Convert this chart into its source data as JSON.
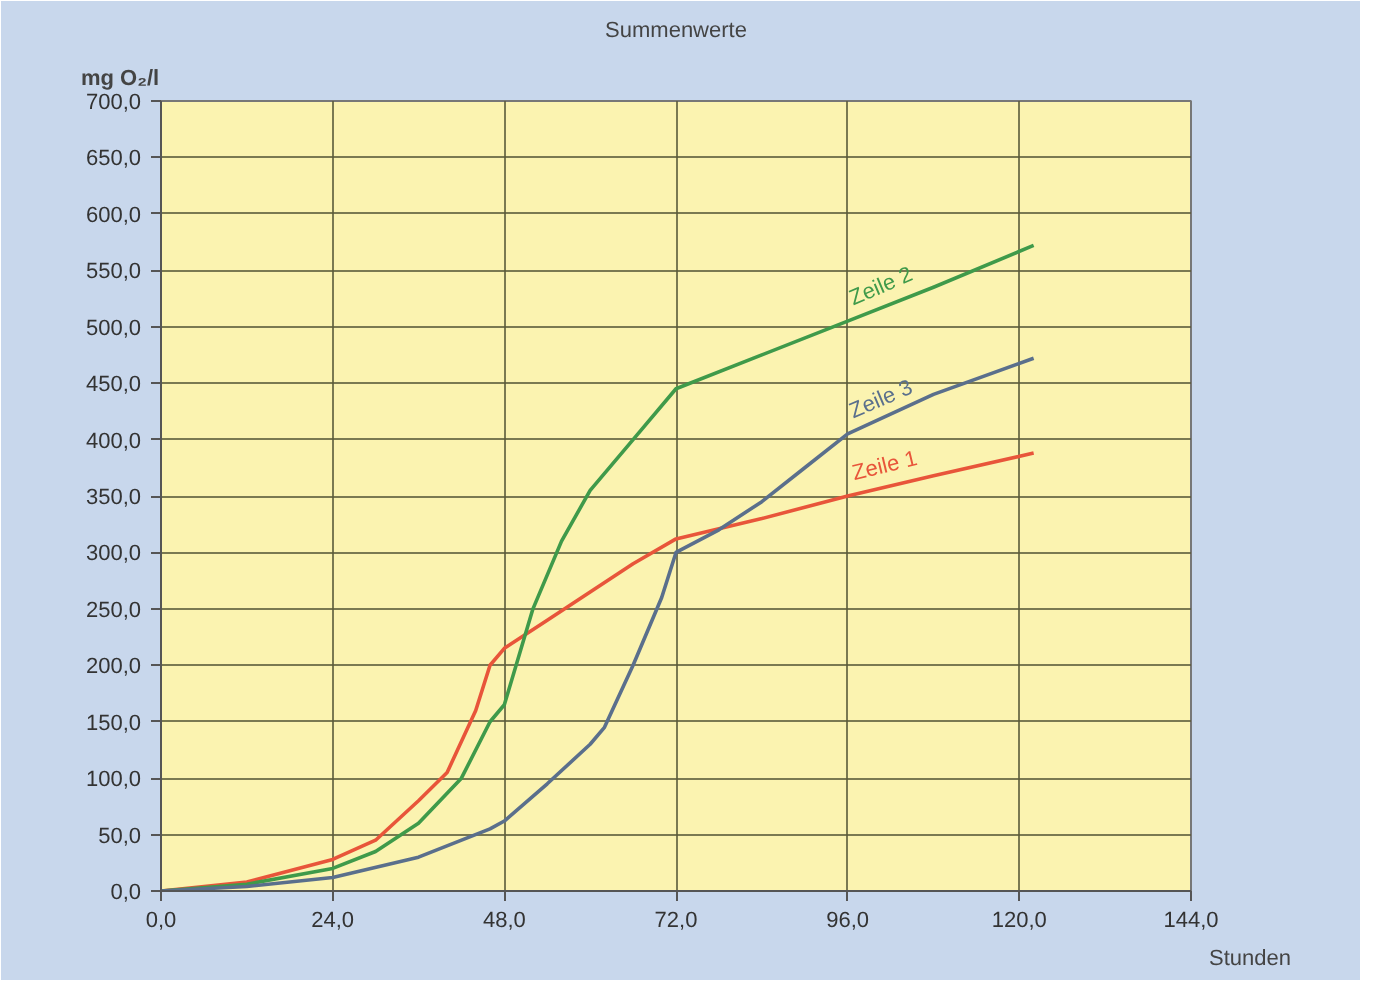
{
  "chart_data": {
    "type": "line",
    "title": "Summenwerte",
    "xlabel": "Stunden",
    "ylabel": "mg O₂/l",
    "xlim": [
      0,
      144
    ],
    "ylim": [
      0,
      700
    ],
    "xticks": [
      {
        "value": 0,
        "label": "0,0"
      },
      {
        "value": 24,
        "label": "24,0"
      },
      {
        "value": 48,
        "label": "48,0"
      },
      {
        "value": 72,
        "label": "72,0"
      },
      {
        "value": 96,
        "label": "96,0"
      },
      {
        "value": 120,
        "label": "120,0"
      },
      {
        "value": 144,
        "label": "144,0"
      }
    ],
    "yticks": [
      {
        "value": 0,
        "label": "0,0"
      },
      {
        "value": 50,
        "label": "50,0"
      },
      {
        "value": 100,
        "label": "100,0"
      },
      {
        "value": 150,
        "label": "150,0"
      },
      {
        "value": 200,
        "label": "200,0"
      },
      {
        "value": 250,
        "label": "250,0"
      },
      {
        "value": 300,
        "label": "300,0"
      },
      {
        "value": 350,
        "label": "350,0"
      },
      {
        "value": 400,
        "label": "400,0"
      },
      {
        "value": 450,
        "label": "450,0"
      },
      {
        "value": 500,
        "label": "500,0"
      },
      {
        "value": 550,
        "label": "550,0"
      },
      {
        "value": 600,
        "label": "600,0"
      },
      {
        "value": 650,
        "label": "650,0"
      },
      {
        "value": 700,
        "label": "700,0"
      }
    ],
    "grid": true,
    "marker": "none",
    "line_style": "solid",
    "series": [
      {
        "name": "Zeile 1",
        "color": "#e8553a",
        "x": [
          0,
          12,
          24,
          30,
          36,
          40,
          44,
          46,
          48,
          54,
          60,
          66,
          72,
          84,
          96,
          108,
          122
        ],
        "values": [
          0,
          8,
          28,
          45,
          80,
          105,
          160,
          200,
          215,
          240,
          265,
          290,
          312,
          330,
          350,
          368,
          388
        ]
      },
      {
        "name": "Zeile 2",
        "color": "#3f9a4a",
        "x": [
          0,
          12,
          24,
          30,
          36,
          42,
          46,
          48,
          52,
          56,
          60,
          66,
          72,
          84,
          96,
          108,
          122
        ],
        "values": [
          0,
          6,
          20,
          35,
          60,
          100,
          150,
          165,
          250,
          310,
          355,
          400,
          445,
          475,
          505,
          535,
          572
        ]
      },
      {
        "name": "Zeile 3",
        "color": "#5a6f8c",
        "x": [
          0,
          12,
          24,
          36,
          46,
          48,
          54,
          60,
          62,
          66,
          70,
          72,
          78,
          84,
          90,
          96,
          108,
          122
        ],
        "values": [
          0,
          4,
          12,
          30,
          55,
          62,
          95,
          130,
          145,
          200,
          260,
          300,
          320,
          345,
          375,
          405,
          440,
          472
        ]
      }
    ]
  }
}
